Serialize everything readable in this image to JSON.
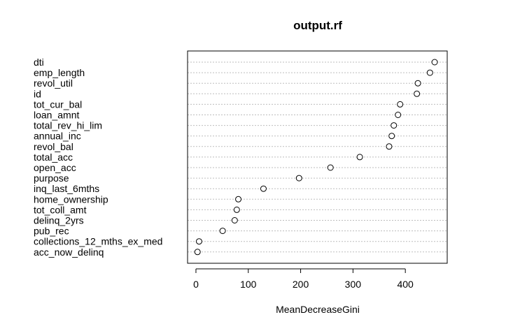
{
  "chart_data": {
    "type": "scatter",
    "title": "output.rf",
    "xlabel": "MeanDecreaseGini",
    "ylabel": "",
    "xlim": [
      -16,
      480
    ],
    "xticks": [
      0,
      100,
      200,
      300,
      400
    ],
    "grid": "horizontal-dotted",
    "categories": [
      "dti",
      "emp_length",
      "revol_util",
      "id",
      "tot_cur_bal",
      "loan_amnt",
      "total_rev_hi_lim",
      "annual_inc",
      "revol_bal",
      "total_acc",
      "open_acc",
      "purpose",
      "inq_last_6mths",
      "home_ownership",
      "tot_coll_amt",
      "delinq_2yrs",
      "pub_rec",
      "collections_12_mths_ex_med",
      "acc_now_delinq"
    ],
    "values": [
      456,
      447,
      424,
      422,
      390,
      386,
      378,
      374,
      369,
      313,
      257,
      197,
      129,
      81,
      78,
      74,
      51,
      6,
      3
    ]
  }
}
